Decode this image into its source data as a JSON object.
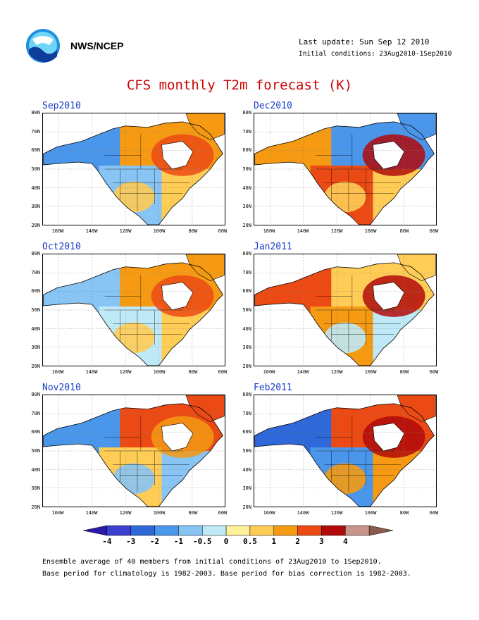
{
  "header": {
    "agency": "NWS/NCEP",
    "last_update": "Last update: Sun Sep 12 2010",
    "initial_conditions": "Initial conditions: 23Aug2010-1Sep2010"
  },
  "title": "CFS monthly T2m forecast (K)",
  "axes": {
    "y_ticks": [
      "80N",
      "70N",
      "60N",
      "50N",
      "40N",
      "30N",
      "20N"
    ],
    "x_ticks": [
      "160W",
      "140W",
      "120W",
      "100W",
      "80W",
      "60W"
    ]
  },
  "panels": [
    {
      "label": "Sep2010"
    },
    {
      "label": "Dec2010"
    },
    {
      "label": "Oct2010"
    },
    {
      "label": "Jan2011"
    },
    {
      "label": "Nov2010"
    },
    {
      "label": "Feb2011"
    }
  ],
  "colorbar": {
    "labels": [
      "-4",
      "-3",
      "-2",
      "-1",
      "-0.5",
      "0",
      "0.5",
      "1",
      "2",
      "3",
      "4"
    ],
    "colors": [
      "#2a1aa8",
      "#3c3fd0",
      "#2f68d8",
      "#4a96ea",
      "#88c4f4",
      "#bfe9f7",
      "#fff09a",
      "#ffcc55",
      "#f59a12",
      "#ec4a14",
      "#b00a0a",
      "#c8958a",
      "#8a5a4a"
    ]
  },
  "footer": {
    "line1": "Ensemble average of 40 members from initial conditions of 23Aug2010 to 1Sep2010.",
    "line2": "Base period for climatology is 1982-2003. Base period for bias correction is 1982-2003."
  }
}
